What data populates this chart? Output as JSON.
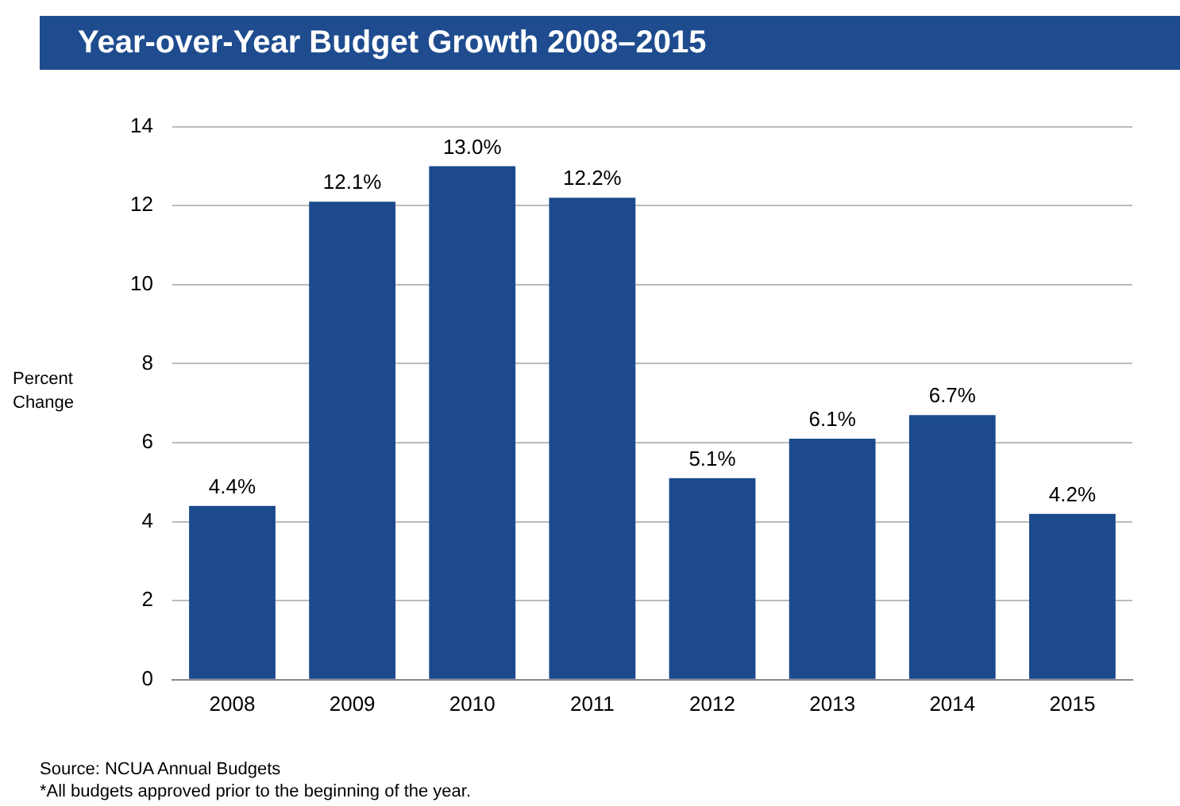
{
  "chart_data": {
    "type": "bar",
    "title": "Year-over-Year Budget Growth 2008–2015",
    "ylabel": "Percent Change",
    "categories": [
      "2008",
      "2009",
      "2010",
      "2011",
      "2012",
      "2013",
      "2014",
      "2015"
    ],
    "values": [
      4.4,
      12.1,
      13.0,
      12.2,
      5.1,
      6.1,
      6.7,
      4.2
    ],
    "value_labels": [
      "4.4%",
      "12.1%",
      "13.0%",
      "12.2%",
      "5.1%",
      "6.1%",
      "6.7%",
      "4.2%"
    ],
    "color": "#1c4a8c",
    "ylim": [
      0,
      14
    ],
    "yticks": [
      0,
      2,
      4,
      6,
      8,
      10,
      12,
      14
    ],
    "grid": "y",
    "legend": false,
    "annotations": [
      "Source: NCUA Annual Budgets",
      "*All budgets approved prior to the beginning of the year."
    ]
  }
}
